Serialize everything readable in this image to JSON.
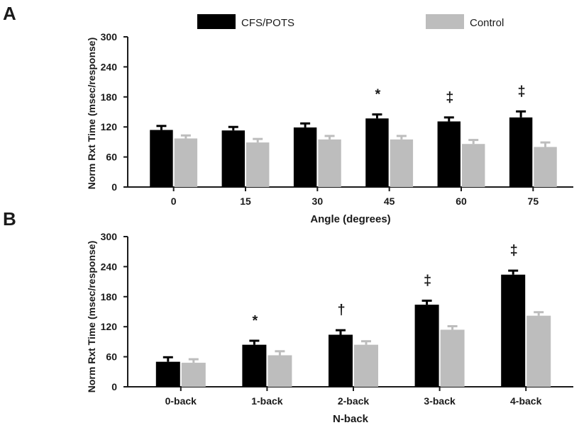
{
  "legend": {
    "entries": [
      {
        "name": "CFS/POTS",
        "color": "#000000"
      },
      {
        "name": "Control",
        "color": "#bdbdbd"
      }
    ]
  },
  "chart_data": [
    {
      "panel": "A",
      "type": "bar",
      "xlabel": "Angle (degrees)",
      "ylabel": "Norm Rxt Time (msec/response)",
      "ylim": [
        0,
        300
      ],
      "yticks": [
        0,
        60,
        120,
        180,
        240,
        300
      ],
      "categories": [
        "0",
        "15",
        "30",
        "45",
        "60",
        "75"
      ],
      "series": [
        {
          "name": "CFS/POTS",
          "color": "#000000",
          "values": [
            114,
            113,
            119,
            137,
            131,
            139
          ],
          "errors": [
            8,
            7,
            8,
            8,
            8,
            12
          ]
        },
        {
          "name": "Control",
          "color": "#bdbdbd",
          "values": [
            97,
            89,
            95,
            95,
            86,
            80
          ],
          "errors": [
            6,
            7,
            7,
            7,
            8,
            9
          ]
        }
      ],
      "annotations": [
        {
          "category": "45",
          "text": "*"
        },
        {
          "category": "60",
          "text": "‡"
        },
        {
          "category": "75",
          "text": "‡"
        }
      ]
    },
    {
      "panel": "B",
      "type": "bar",
      "xlabel": "N-back",
      "ylabel": "Norm Rxt Time (msec/response)",
      "ylim": [
        0,
        300
      ],
      "yticks": [
        0,
        60,
        120,
        180,
        240,
        300
      ],
      "categories": [
        "0-back",
        "1-back",
        "2-back",
        "3-back",
        "4-back"
      ],
      "series": [
        {
          "name": "CFS/POTS",
          "color": "#000000",
          "values": [
            50,
            84,
            104,
            164,
            224
          ],
          "errors": [
            9,
            8,
            9,
            8,
            8
          ]
        },
        {
          "name": "Control",
          "color": "#bdbdbd",
          "values": [
            48,
            63,
            84,
            114,
            142
          ],
          "errors": [
            7,
            8,
            7,
            7,
            7
          ]
        }
      ],
      "annotations": [
        {
          "category": "1-back",
          "text": "*"
        },
        {
          "category": "2-back",
          "text": "†"
        },
        {
          "category": "3-back",
          "text": "‡"
        },
        {
          "category": "4-back",
          "text": "‡"
        }
      ]
    }
  ]
}
